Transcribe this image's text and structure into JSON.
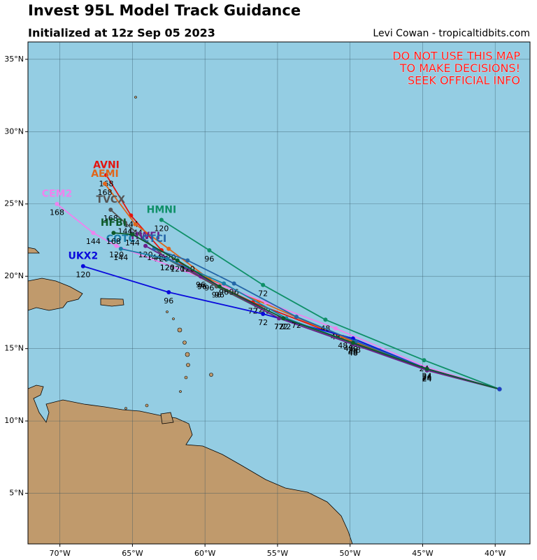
{
  "chart_data": {
    "type": "track-map",
    "title": "Invest 95L Model Track Guidance",
    "subtitle": "Initialized at 12z Sep 05 2023",
    "credit": "Levi Cowan - tropicaltidbits.com",
    "warning": [
      "DO NOT USE THIS MAP",
      "TO MAKE DECISIONS!",
      "SEEK OFFICIAL INFO"
    ],
    "xlim": [
      -72.2,
      -37.6
    ],
    "ylim": [
      1.5,
      36.2
    ],
    "xticks": [
      {
        "value": -70,
        "label": "70°W"
      },
      {
        "value": -65,
        "label": "65°W"
      },
      {
        "value": -60,
        "label": "60°W"
      },
      {
        "value": -55,
        "label": "55°W"
      },
      {
        "value": -50,
        "label": "50°W"
      },
      {
        "value": -45,
        "label": "45°W"
      },
      {
        "value": -40,
        "label": "40°W"
      }
    ],
    "yticks": [
      {
        "value": 5,
        "label": "5°N"
      },
      {
        "value": 10,
        "label": "10°N"
      },
      {
        "value": 15,
        "label": "15°N"
      },
      {
        "value": 20,
        "label": "20°N"
      },
      {
        "value": 25,
        "label": "25°N"
      },
      {
        "value": 30,
        "label": "30°N"
      },
      {
        "value": 35,
        "label": "35°N"
      }
    ],
    "grid": true,
    "initial": {
      "lon": -39.7,
      "lat": 12.2
    },
    "tracks": [
      {
        "name": "AVNI",
        "color": "#e3140f",
        "hours": [
          24,
          48,
          72,
          96,
          120,
          144,
          168
        ],
        "lon": [
          -44.7,
          -50.5,
          -56.7,
          -60.2,
          -63.0,
          -65.1,
          -66.8
        ],
        "lat": [
          13.5,
          15.8,
          18.2,
          19.9,
          21.8,
          24.2,
          27.0
        ]
      },
      {
        "name": "AEMI",
        "color": "#e0651a",
        "hours": [
          24,
          48,
          72,
          96,
          120,
          144,
          168
        ],
        "lon": [
          -44.7,
          -50.1,
          -56.3,
          -59.7,
          -62.5,
          -64.8,
          -66.9
        ],
        "lat": [
          13.6,
          15.6,
          18.3,
          19.8,
          21.9,
          23.6,
          26.4
        ]
      },
      {
        "name": "CEM2",
        "color": "#ee82ee",
        "hours": [
          24,
          48,
          72,
          96,
          120,
          144,
          168
        ],
        "lon": [
          -44.7,
          -51.0,
          -55.8,
          -60.2,
          -66.1,
          -67.7,
          -70.2
        ],
        "lat": [
          13.7,
          16.4,
          18.2,
          19.9,
          22.1,
          23.0,
          25.0
        ]
      },
      {
        "name": "TVCX",
        "color": "#555555",
        "hours": [
          24,
          48,
          72,
          96,
          120,
          144,
          168
        ],
        "lon": [
          -44.7,
          -49.8,
          -54.9,
          -59.2,
          -62.6,
          -65.5,
          -66.5
        ],
        "lat": [
          13.6,
          15.3,
          17.1,
          19.3,
          21.2,
          23.7,
          24.6
        ]
      },
      {
        "name": "HMNI",
        "color": "#0f9068",
        "hours": [
          24,
          48,
          72,
          96,
          120
        ],
        "lon": [
          -44.9,
          -51.7,
          -56.0,
          -59.7,
          -63.0
        ],
        "lat": [
          14.2,
          17.0,
          19.4,
          21.8,
          23.9
        ]
      },
      {
        "name": "UKX2",
        "color": "#0a0adc",
        "hours": [
          24,
          48,
          72,
          96,
          120
        ],
        "lon": [
          -44.7,
          -49.8,
          -56.0,
          -62.5,
          -68.4
        ],
        "lat": [
          13.6,
          15.7,
          17.4,
          18.9,
          20.7
        ]
      },
      {
        "name": "HWFI",
        "color": "#6b1f8c",
        "hours": [
          24,
          48,
          72,
          96,
          120
        ],
        "lon": [
          -44.7,
          -49.8,
          -54.9,
          -60.3,
          -64.1
        ],
        "lat": [
          13.5,
          15.3,
          17.1,
          20.0,
          22.1
        ]
      },
      {
        "name": "CTCI",
        "color": "#2466a8",
        "hours": [
          24,
          48,
          72,
          96,
          120,
          144
        ],
        "lon": [
          -44.7,
          -49.6,
          -53.7,
          -58.0,
          -61.2,
          -63.5
        ],
        "lat": [
          13.6,
          15.5,
          17.2,
          19.5,
          21.1,
          21.9
        ]
      },
      {
        "name": "COTC",
        "color": "#1a7ea8",
        "hours": [
          24,
          48,
          72,
          96,
          120,
          144
        ],
        "lon": [
          -44.7,
          -49.8,
          -54.4,
          -58.7,
          -62.6,
          -65.8
        ],
        "lat": [
          13.6,
          15.4,
          17.1,
          19.5,
          21.2,
          21.9
        ]
      },
      {
        "name": "HFBI",
        "color": "#0d5a2a",
        "hours": [
          24,
          48,
          72,
          96,
          120,
          144,
          168
        ],
        "lon": [
          -44.7,
          -49.8,
          -54.6,
          -59.0,
          -61.9,
          -65.0,
          -66.3
        ],
        "lat": [
          13.6,
          15.4,
          17.1,
          19.3,
          21.1,
          22.9,
          23.0
        ]
      }
    ]
  }
}
